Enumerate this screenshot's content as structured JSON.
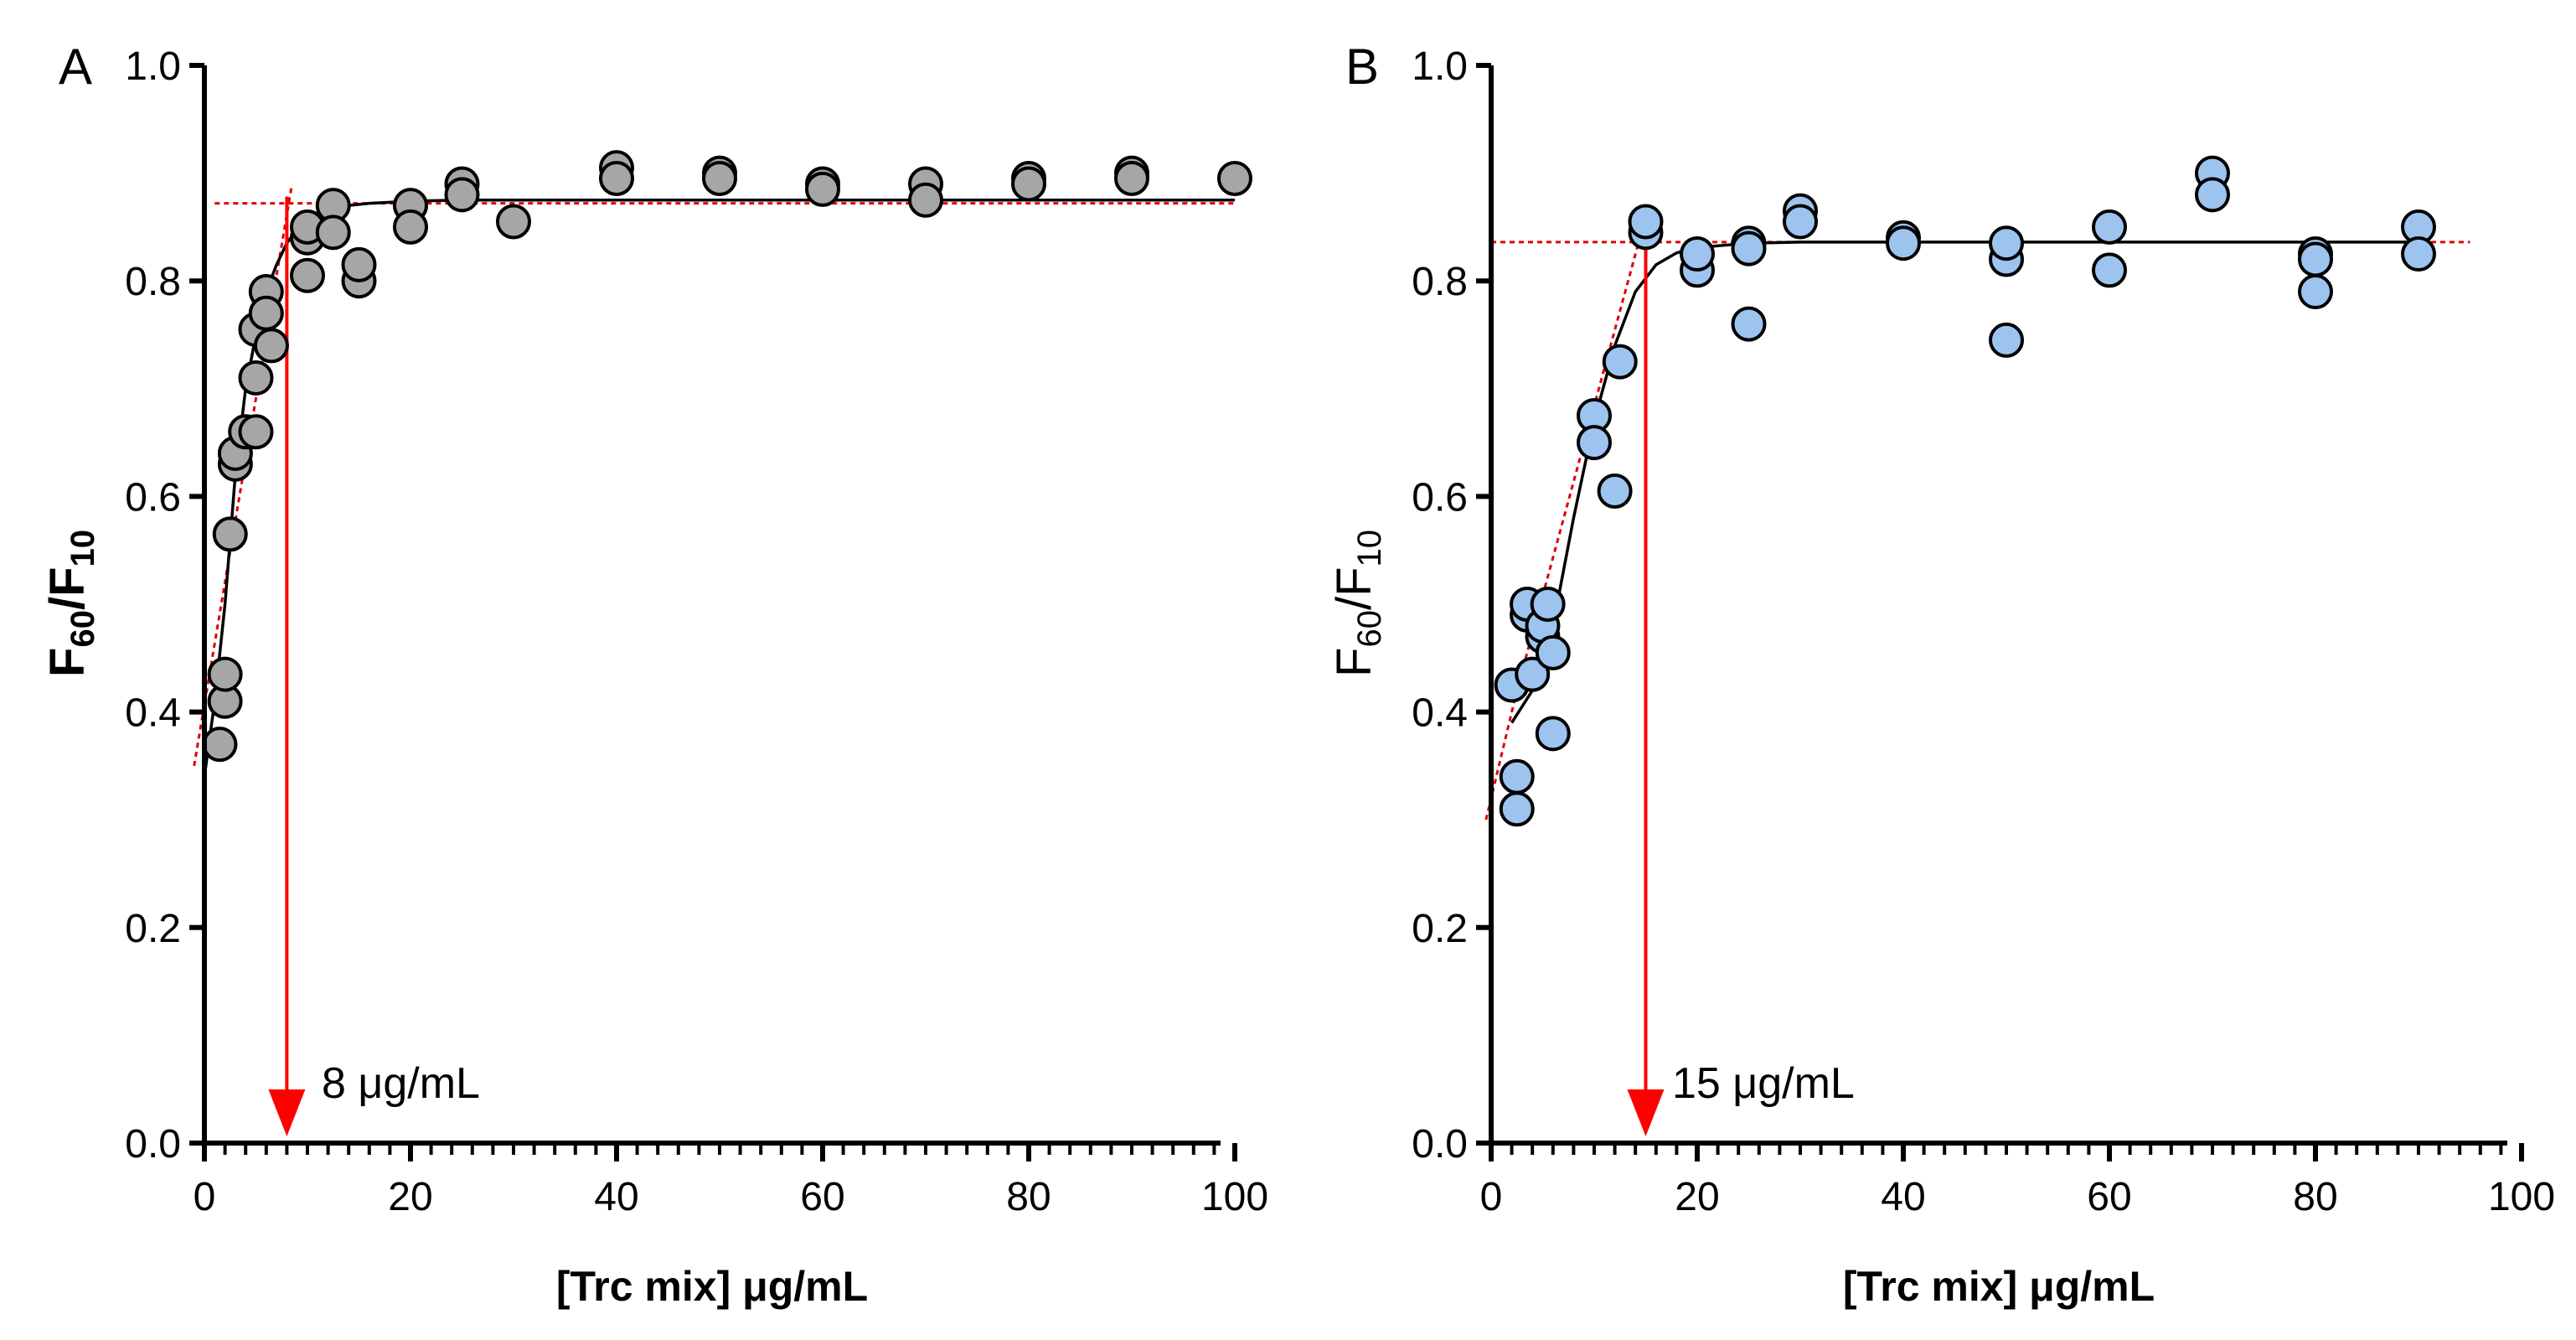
{
  "chart_data": [
    {
      "panel": "A",
      "type": "scatter",
      "xlabel": "[Trc mix] μg/mL",
      "ylabel_main": "F",
      "ylabel_sub1": "60",
      "ylabel_mid": "/F",
      "ylabel_sub2": "10",
      "xlim": [
        0,
        100
      ],
      "ylim": [
        0.0,
        1.0
      ],
      "x_ticks": [
        0,
        20,
        40,
        60,
        80,
        100
      ],
      "x_tick_labels": [
        "0",
        "20",
        "40",
        "60",
        "80",
        "100"
      ],
      "y_ticks": [
        0.0,
        0.2,
        0.4,
        0.6,
        0.8,
        1.0
      ],
      "y_tick_labels": [
        "0.0",
        "0.2",
        "0.4",
        "0.6",
        "0.8",
        "1.0"
      ],
      "marker_color": "#a6a6a6",
      "points": {
        "x": [
          1.5,
          2,
          2,
          2.5,
          3,
          3,
          4,
          5,
          5,
          5,
          6,
          6,
          6.5,
          10,
          10,
          10,
          12.5,
          12.5,
          15,
          15,
          20,
          20,
          25,
          25,
          30,
          40,
          40,
          50,
          50,
          60,
          60,
          70,
          70,
          80,
          80,
          90,
          90,
          100
        ],
        "y": [
          0.37,
          0.41,
          0.435,
          0.565,
          0.63,
          0.64,
          0.66,
          0.71,
          0.755,
          0.66,
          0.79,
          0.77,
          0.74,
          0.805,
          0.84,
          0.85,
          0.87,
          0.845,
          0.8,
          0.815,
          0.87,
          0.85,
          0.89,
          0.88,
          0.855,
          0.905,
          0.895,
          0.9,
          0.895,
          0.89,
          0.885,
          0.89,
          0.875,
          0.895,
          0.89,
          0.9,
          0.895,
          0.895
        ]
      },
      "fit_curve": {
        "x": [
          0,
          1,
          2,
          3,
          4,
          5,
          6,
          7,
          8,
          9,
          10,
          12,
          14,
          16,
          18,
          20,
          25,
          30,
          100
        ],
        "y": [
          0.34,
          0.41,
          0.5,
          0.62,
          0.7,
          0.75,
          0.79,
          0.815,
          0.835,
          0.848,
          0.858,
          0.866,
          0.87,
          0.872,
          0.873,
          0.874,
          0.875,
          0.875,
          0.875
        ]
      },
      "linear_fit": {
        "x": [
          -1,
          8.5
        ],
        "y": [
          0.35,
          0.89
        ]
      },
      "plateau": {
        "x": [
          1,
          100
        ],
        "y": 0.872
      },
      "threshold_x": 8,
      "threshold_label": "8 μg/mL"
    },
    {
      "panel": "B",
      "type": "scatter",
      "xlabel": "[Trc mix] μg/mL",
      "ylabel_main": "F",
      "ylabel_sub1": "60",
      "ylabel_mid": "/F",
      "ylabel_sub2": "10",
      "xlim": [
        0,
        100
      ],
      "ylim": [
        0.0,
        1.0
      ],
      "x_ticks": [
        0,
        20,
        40,
        60,
        80,
        100
      ],
      "x_tick_labels": [
        "0",
        "20",
        "40",
        "60",
        "80",
        "100"
      ],
      "y_ticks": [
        0.0,
        0.2,
        0.4,
        0.6,
        0.8,
        1.0
      ],
      "y_tick_labels": [
        "0.0",
        "0.2",
        "0.4",
        "0.6",
        "0.8",
        "1.0"
      ],
      "marker_color": "#9dc3ef",
      "points": {
        "x": [
          2,
          2.5,
          2.5,
          3.5,
          3.5,
          4,
          5,
          5,
          5.5,
          6,
          6,
          10,
          10,
          12,
          12.5,
          15,
          15,
          20,
          20,
          25,
          25,
          25,
          30,
          30,
          40,
          40,
          50,
          50,
          50,
          60,
          60,
          70,
          70,
          80,
          80,
          80,
          90,
          90
        ],
        "y": [
          0.425,
          0.34,
          0.31,
          0.49,
          0.5,
          0.435,
          0.47,
          0.48,
          0.5,
          0.38,
          0.455,
          0.675,
          0.65,
          0.605,
          0.725,
          0.845,
          0.855,
          0.81,
          0.825,
          0.76,
          0.835,
          0.83,
          0.865,
          0.855,
          0.84,
          0.835,
          0.745,
          0.82,
          0.835,
          0.85,
          0.81,
          0.9,
          0.88,
          0.825,
          0.82,
          0.79,
          0.85,
          0.825
        ]
      },
      "fit_curve": {
        "x": [
          2,
          4,
          6,
          8,
          10,
          12,
          14,
          16,
          18,
          20,
          25,
          30,
          90
        ],
        "y": [
          0.39,
          0.42,
          0.48,
          0.58,
          0.67,
          0.74,
          0.79,
          0.815,
          0.826,
          0.831,
          0.835,
          0.836,
          0.836
        ]
      },
      "linear_fit": {
        "x": [
          -0.5,
          2.5,
          15
        ],
        "y": [
          0.3,
          0.42,
          0.86
        ]
      },
      "plateau": {
        "x": [
          0,
          95
        ],
        "y": 0.836
      },
      "threshold_x": 15,
      "threshold_label": "15 μg/mL"
    }
  ]
}
